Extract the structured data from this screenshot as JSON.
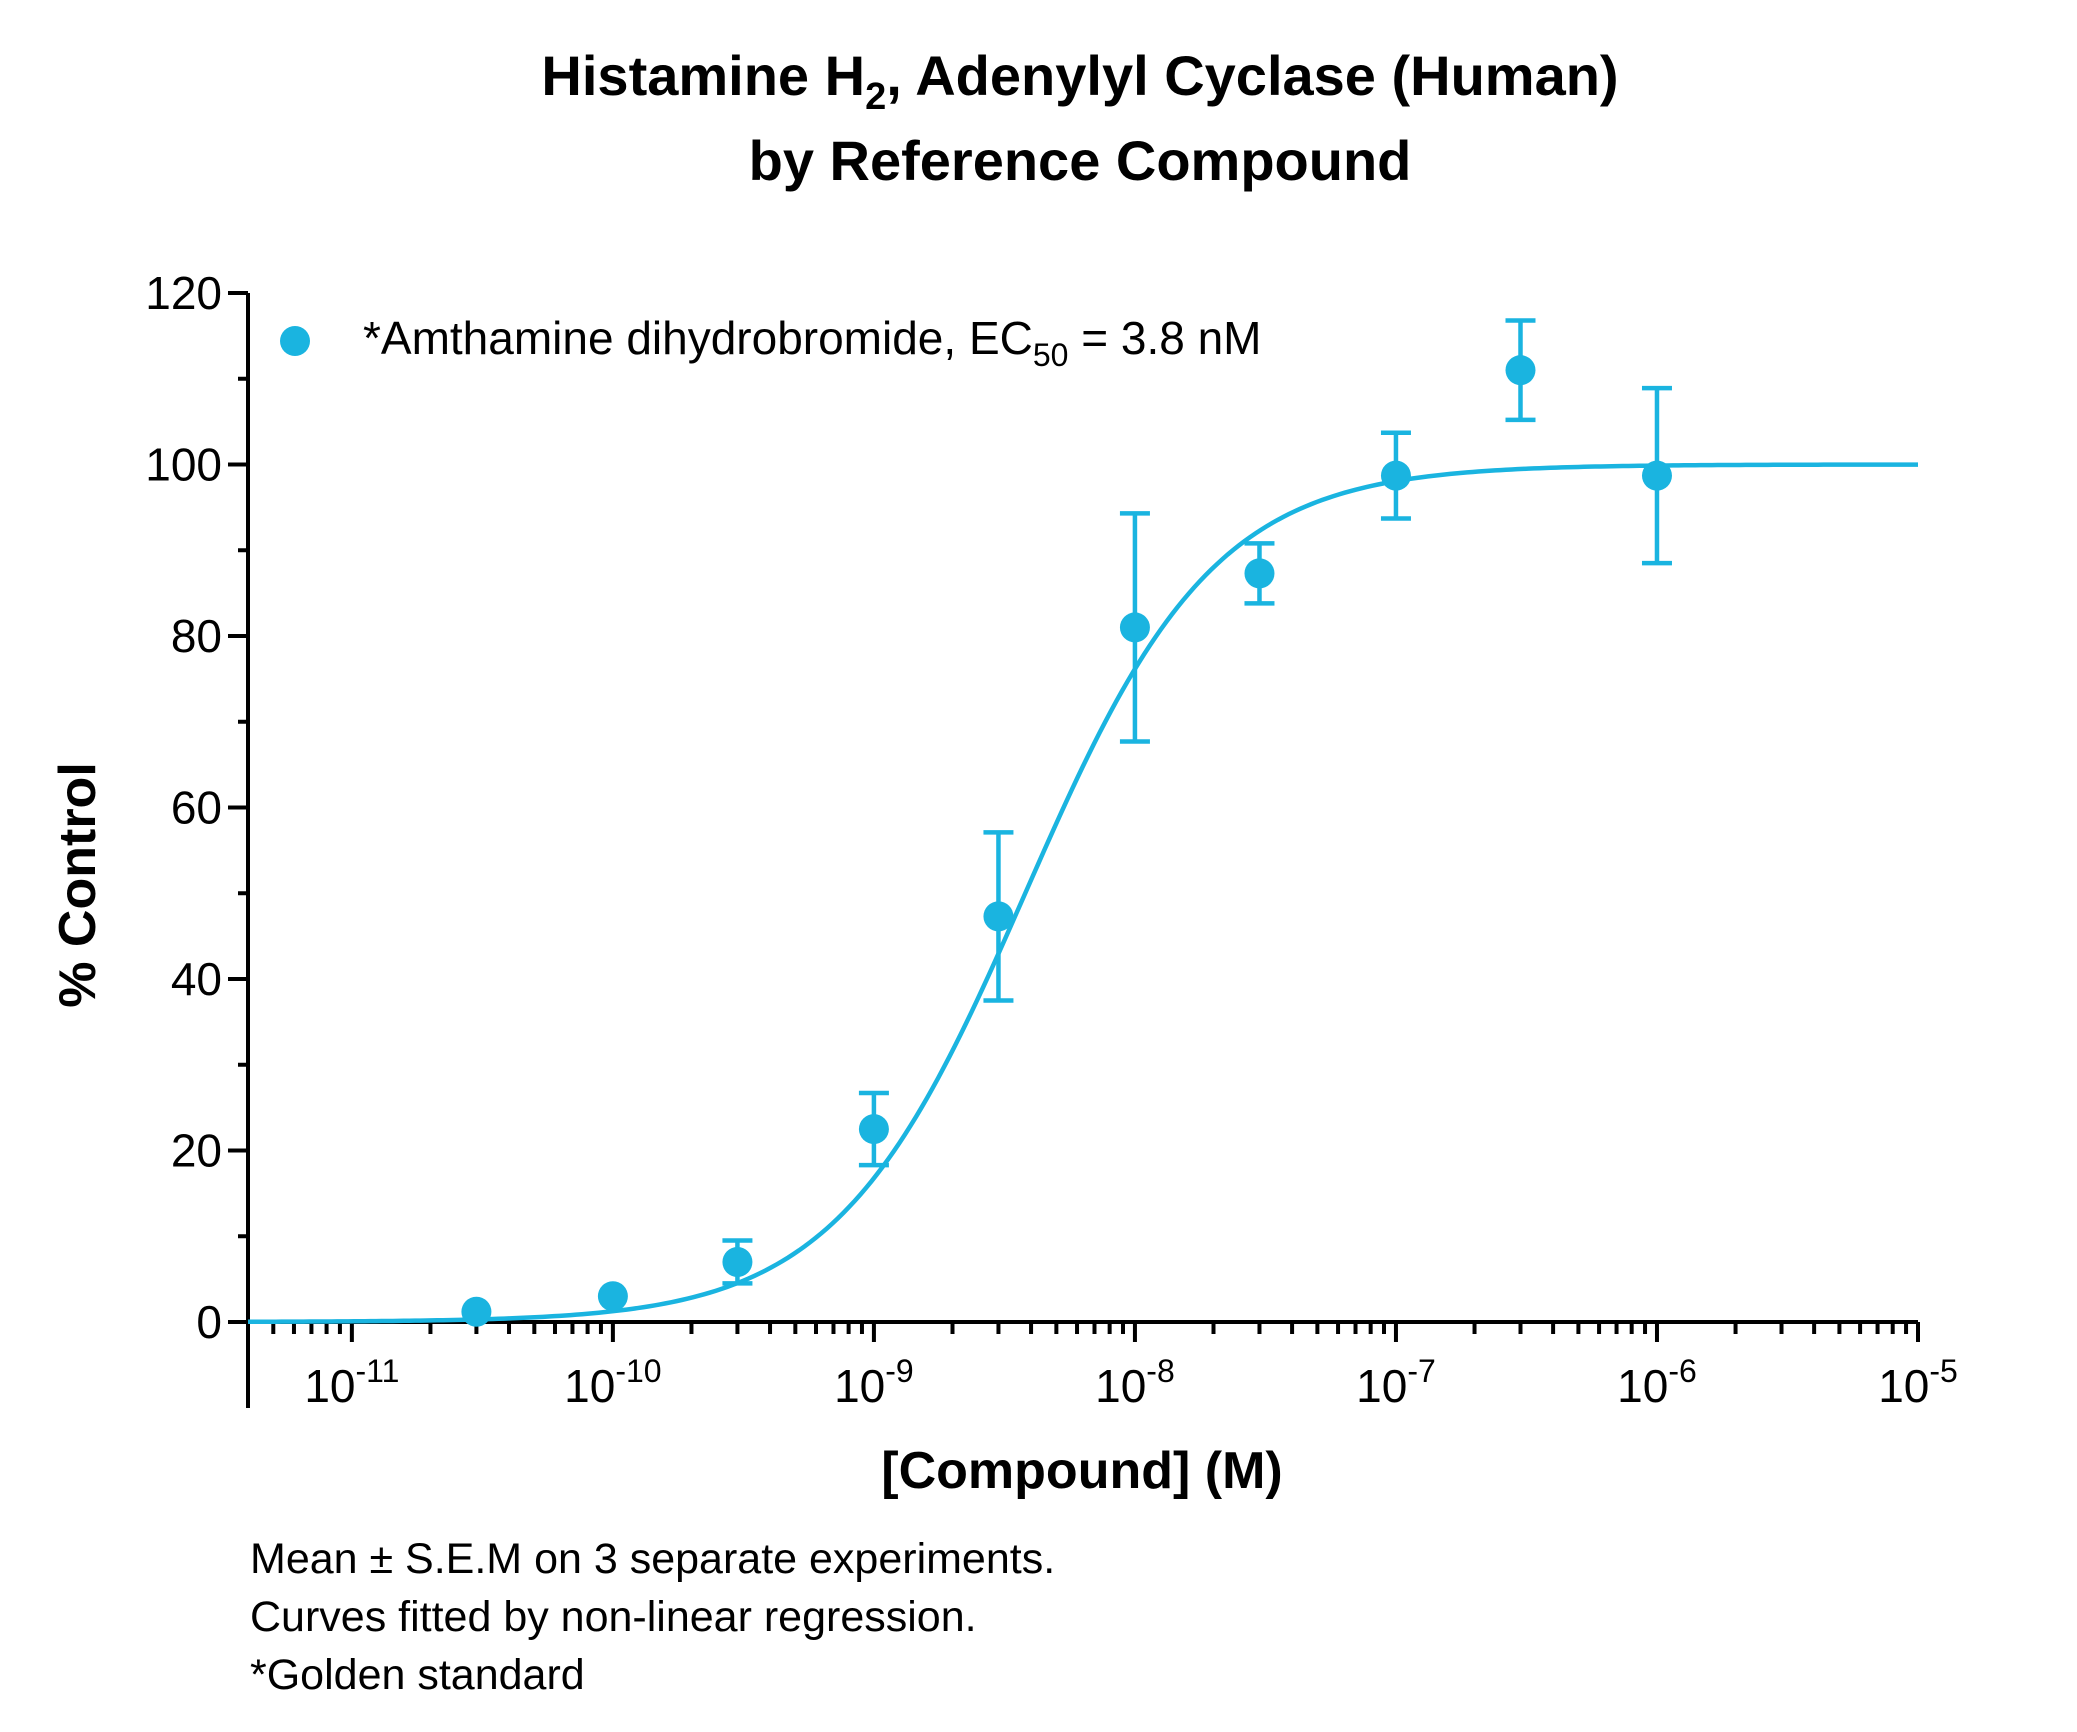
{
  "chart_data": {
    "type": "scatter",
    "title": {
      "line1_pre": "Histamine H",
      "line1_sub": "2",
      "line1_post": ", Adenylyl Cyclase (Human)",
      "line2": "by Reference Compound"
    },
    "xlabel": "[Compound] (M)",
    "ylabel": "% Control",
    "x_scale": "log",
    "xlim": [
      4e-12,
      1e-05
    ],
    "ylim": [
      0,
      120
    ],
    "y_ticks": [
      0,
      20,
      40,
      60,
      80,
      100,
      120
    ],
    "x_ticks": [
      {
        "value": 1e-11,
        "base": "10",
        "exp": "-11"
      },
      {
        "value": 1e-10,
        "base": "10",
        "exp": "-10"
      },
      {
        "value": 1e-09,
        "base": "10",
        "exp": "-9"
      },
      {
        "value": 1e-08,
        "base": "10",
        "exp": "-8"
      },
      {
        "value": 1e-07,
        "base": "10",
        "exp": "-7"
      },
      {
        "value": 1e-06,
        "base": "10",
        "exp": "-6"
      },
      {
        "value": 1e-05,
        "base": "10",
        "exp": "-5"
      }
    ],
    "grid": false,
    "legend_position": "top-left",
    "series": [
      {
        "name_pre": "*Amthamine dihydrobromide, EC",
        "name_sub": "50",
        "name_post": " = 3.8 nM",
        "color": "#1ab4e0",
        "points": [
          {
            "x": 3e-11,
            "y": 1.2,
            "err": 0
          },
          {
            "x": 1e-10,
            "y": 3,
            "err": 0
          },
          {
            "x": 3e-10,
            "y": 7,
            "err": 2.5
          },
          {
            "x": 1e-09,
            "y": 22.5,
            "err": 4.2
          },
          {
            "x": 3e-09,
            "y": 47.3,
            "err": 9.8
          },
          {
            "x": 1e-08,
            "y": 81,
            "err": 13.3
          },
          {
            "x": 3e-08,
            "y": 87.3,
            "err": 3.5
          },
          {
            "x": 1e-07,
            "y": 98.7,
            "err": 5
          },
          {
            "x": 3e-07,
            "y": 111,
            "err": 5.8
          },
          {
            "x": 1e-06,
            "y": 98.7,
            "err": 10.2
          }
        ],
        "fit": {
          "model": "sigmoidal dose-response",
          "bottom": 0,
          "top": 100,
          "ec50": 3.8e-09,
          "hill": 1.2
        }
      }
    ]
  },
  "notes": [
    "Mean ± S.E.M on 3 separate experiments.",
    "Curves fitted by non-linear regression.",
    "*Golden standard"
  ]
}
